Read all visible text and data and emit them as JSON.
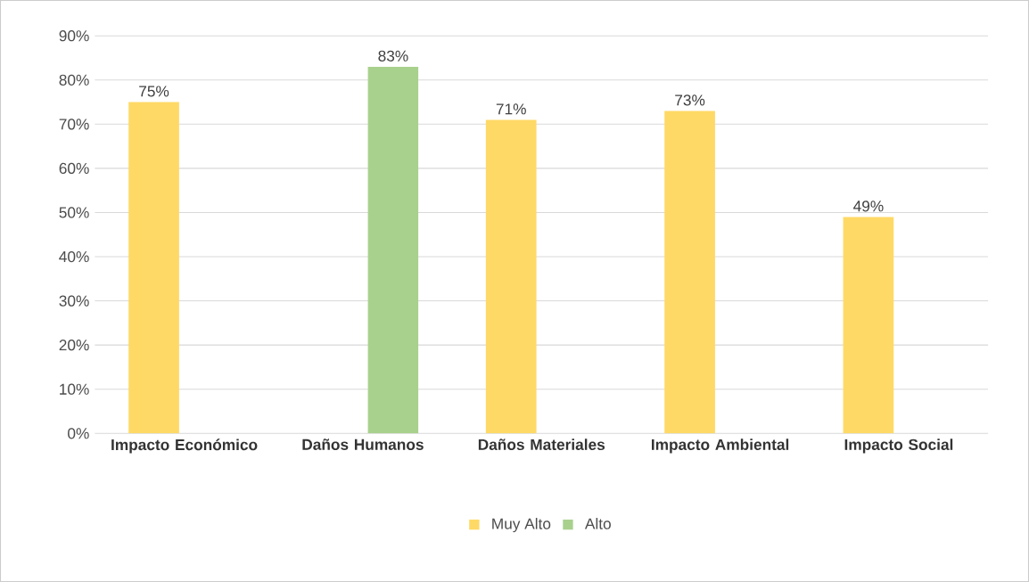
{
  "chart_data": {
    "type": "bar",
    "categories": [
      "Impacto Económico",
      "Daños Humanos",
      "Daños Materiales",
      "Impacto Ambiental",
      "Impacto Social"
    ],
    "series": [
      {
        "name": "Muy Alto",
        "color": "#ffd966",
        "values": [
          75,
          null,
          71,
          73,
          49
        ],
        "value_labels": [
          "75%",
          null,
          "71%",
          "73%",
          "49%"
        ]
      },
      {
        "name": "Alto",
        "color": "#a9d18e",
        "values": [
          null,
          83,
          null,
          null,
          null
        ],
        "value_labels": [
          null,
          "83%",
          null,
          null,
          null
        ]
      }
    ],
    "ylim": [
      0,
      90
    ],
    "yticks": [
      {
        "value": 0,
        "label": "0%"
      },
      {
        "value": 10,
        "label": "10%"
      },
      {
        "value": 20,
        "label": "20%"
      },
      {
        "value": 30,
        "label": "30%"
      },
      {
        "value": 40,
        "label": "40%"
      },
      {
        "value": 50,
        "label": "50%"
      },
      {
        "value": 60,
        "label": "60%"
      },
      {
        "value": 70,
        "label": "70%"
      },
      {
        "value": 80,
        "label": "80%"
      },
      {
        "value": 90,
        "label": "90%"
      }
    ],
    "grid": "y",
    "legend": "bottom"
  }
}
